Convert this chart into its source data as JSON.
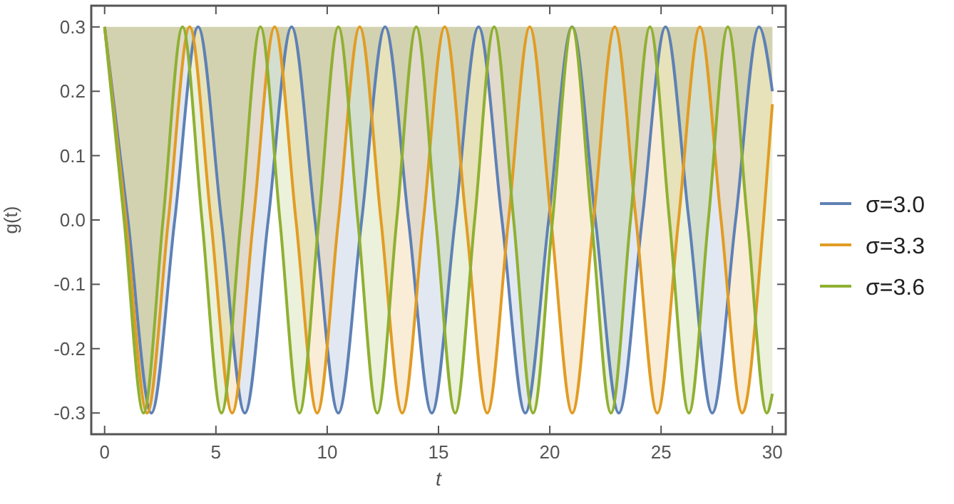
{
  "chart_data": {
    "type": "line",
    "xlabel": "t",
    "ylabel": "g(t)",
    "xlim": [
      -0.6,
      30.6
    ],
    "ylim": [
      -0.333,
      0.333
    ],
    "xticks": [
      0,
      5,
      10,
      15,
      20,
      25,
      30
    ],
    "yticks": [
      {
        "value": -0.3,
        "label": "-0.3"
      },
      {
        "value": -0.2,
        "label": "-0.2"
      },
      {
        "value": -0.1,
        "label": "-0.1"
      },
      {
        "value": 0,
        "label": "0.0"
      },
      {
        "value": 0.1,
        "label": "0.1"
      },
      {
        "value": 0.2,
        "label": "0.2"
      },
      {
        "value": 0.3,
        "label": "0.3"
      }
    ],
    "legend": "right",
    "grid": false,
    "marker": "none",
    "line_style": "solid",
    "series": [
      {
        "name": "σ=3.0",
        "color": "#5e81b5",
        "x": [
          0,
          1.05,
          2.1,
          3.15,
          4.2,
          5.25,
          6.3,
          7.35,
          8.4,
          9.45,
          10.5,
          11.55,
          12.6,
          13.65,
          14.7,
          15.75,
          16.8,
          17.85,
          18.9,
          19.95,
          21,
          22.05,
          23.1,
          24.15,
          25.2,
          26.25,
          27.3,
          28.35,
          29.4,
          30
        ],
        "values": [
          0.3,
          0,
          -0.3,
          0,
          0.3,
          0,
          -0.3,
          0,
          0.3,
          0,
          -0.3,
          0,
          0.3,
          0,
          -0.3,
          0,
          0.3,
          0,
          -0.3,
          0,
          0.3,
          0,
          -0.3,
          0,
          0.3,
          0,
          -0.3,
          0,
          0.3,
          0.2
        ]
      },
      {
        "name": "σ=3.3",
        "color": "#e19c24",
        "x": [
          0,
          0.955,
          1.91,
          2.865,
          3.82,
          4.775,
          5.73,
          6.685,
          7.64,
          8.595,
          9.55,
          10.505,
          11.46,
          12.415,
          13.37,
          14.325,
          15.28,
          16.235,
          17.19,
          18.145,
          19.1,
          20.055,
          21.01,
          21.965,
          22.92,
          23.875,
          24.83,
          25.785,
          26.74,
          27.695,
          28.65,
          29.605,
          30
        ],
        "values": [
          0.3,
          0,
          -0.3,
          0,
          0.3,
          0,
          -0.3,
          0,
          0.3,
          0,
          -0.3,
          0,
          0.3,
          0,
          -0.3,
          0,
          0.3,
          0,
          -0.3,
          0,
          0.3,
          0,
          -0.3,
          0,
          0.3,
          0,
          -0.3,
          0,
          0.3,
          0,
          -0.3,
          0,
          0.18
        ]
      },
      {
        "name": "σ=3.6",
        "color": "#8fb032",
        "x": [
          0,
          0.875,
          1.75,
          2.625,
          3.5,
          4.375,
          5.25,
          6.125,
          7,
          7.875,
          8.75,
          9.625,
          10.5,
          11.375,
          12.25,
          13.125,
          14,
          14.875,
          15.75,
          16.625,
          17.5,
          18.375,
          19.25,
          20.125,
          21,
          21.875,
          22.75,
          23.625,
          24.5,
          25.375,
          26.25,
          27.125,
          28,
          28.875,
          29.75,
          30
        ],
        "values": [
          0.3,
          0,
          -0.3,
          0,
          0.3,
          0,
          -0.3,
          0,
          0.3,
          0,
          -0.3,
          0,
          0.3,
          0,
          -0.3,
          0,
          0.3,
          0,
          -0.3,
          0,
          0.3,
          0,
          -0.3,
          0,
          0.3,
          0,
          -0.3,
          0,
          0.3,
          0,
          -0.3,
          0,
          0.3,
          0,
          -0.3,
          -0.27
        ]
      }
    ]
  }
}
